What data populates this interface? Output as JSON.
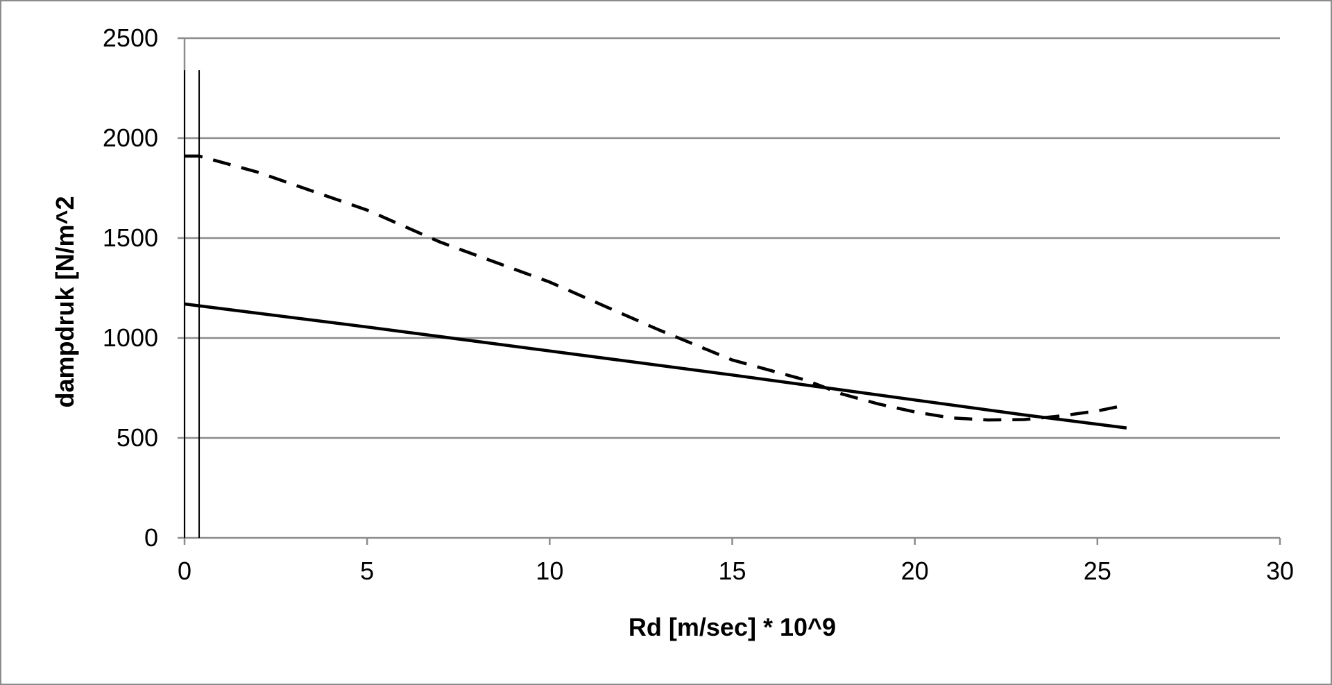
{
  "chart_data": {
    "type": "line",
    "title": "",
    "xlabel": "Rd [m/sec] * 10^9",
    "ylabel": "dampdruk [N/m^2",
    "xlim": [
      0,
      30
    ],
    "ylim": [
      0,
      2500
    ],
    "xticks": [
      0,
      5,
      10,
      15,
      20,
      25,
      30
    ],
    "yticks": [
      0,
      500,
      1000,
      1500,
      2000,
      2500
    ],
    "grid": "horizontal",
    "legend": "none",
    "series": [
      {
        "style": "solid",
        "color": "#000000",
        "x": [
          0,
          5,
          10,
          15,
          18,
          20,
          23,
          25.8
        ],
        "y": [
          1170,
          1055,
          935,
          815,
          740,
          690,
          615,
          550
        ]
      },
      {
        "style": "dashed",
        "color": "#000000",
        "x": [
          0,
          0.4,
          2,
          5,
          7,
          10,
          13,
          15,
          17,
          18,
          19,
          20,
          21,
          22,
          23,
          24,
          25,
          25.8
        ],
        "y": [
          1910,
          1910,
          1830,
          1640,
          1480,
          1280,
          1040,
          890,
          790,
          720,
          670,
          630,
          600,
          590,
          592,
          610,
          635,
          665
        ]
      }
    ],
    "vertical_lines": [
      0,
      0.4
    ],
    "vertical_line_top": 2340
  }
}
